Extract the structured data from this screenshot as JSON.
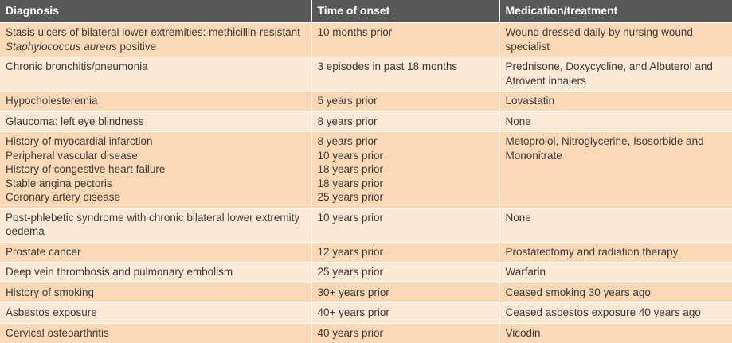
{
  "columns": [
    "Diagnosis",
    "Time of onset",
    "Medication/treatment"
  ],
  "row1": {
    "diagnosis_pre": "Stasis ulcers of bilateral lower extremities: methicillin-resistant ",
    "diagnosis_italic": "Staphylococcus aureus",
    "diagnosis_post": " positive",
    "onset": "10 months prior",
    "treatment": "Wound dressed daily by nursing wound specialist"
  },
  "rows": [
    {
      "diagnosis": [
        "Chronic bronchitis/pneumonia"
      ],
      "onset": [
        "3 episodes in past 18 months"
      ],
      "treatment": "Prednisone, Doxycycline, and Albuterol and Atrovent inhalers"
    },
    {
      "diagnosis": [
        "Hypocholesteremia"
      ],
      "onset": [
        "5 years prior"
      ],
      "treatment": "Lovastatin"
    },
    {
      "diagnosis": [
        "Glaucoma: left eye blindness"
      ],
      "onset": [
        "8 years prior"
      ],
      "treatment": "None"
    },
    {
      "diagnosis": [
        "History of myocardial infarction",
        "Peripheral vascular disease",
        "History of congestive heart failure",
        "Stable angina pectoris",
        "Coronary artery disease"
      ],
      "onset": [
        "8 years prior",
        "10 years prior",
        "18 years prior",
        "18 years prior",
        "25 years prior"
      ],
      "treatment": "Metoprolol, Nitroglycerine, Isosorbide and Mononitrate"
    },
    {
      "diagnosis": [
        "Post-phlebetic syndrome with chronic bilateral lower extremity oedema"
      ],
      "onset": [
        "10 years prior"
      ],
      "treatment": "None"
    },
    {
      "diagnosis": [
        "Prostate cancer"
      ],
      "onset": [
        "12 years prior"
      ],
      "treatment": "Prostatectomy and radiation therapy"
    },
    {
      "diagnosis": [
        "Deep vein thrombosis and pulmonary embolism"
      ],
      "onset": [
        "25 years prior"
      ],
      "treatment": "Warfarin"
    },
    {
      "diagnosis": [
        "History of smoking"
      ],
      "onset": [
        "30+ years prior"
      ],
      "treatment": "Ceased smoking 30 years ago"
    },
    {
      "diagnosis": [
        "Asbestos exposure"
      ],
      "onset": [
        "40+ years prior"
      ],
      "treatment": "Ceased asbestos exposure 40 years ago"
    },
    {
      "diagnosis": [
        "Cervical osteoarthritis"
      ],
      "onset": [
        "40 years prior"
      ],
      "treatment": "Vicodin"
    }
  ]
}
